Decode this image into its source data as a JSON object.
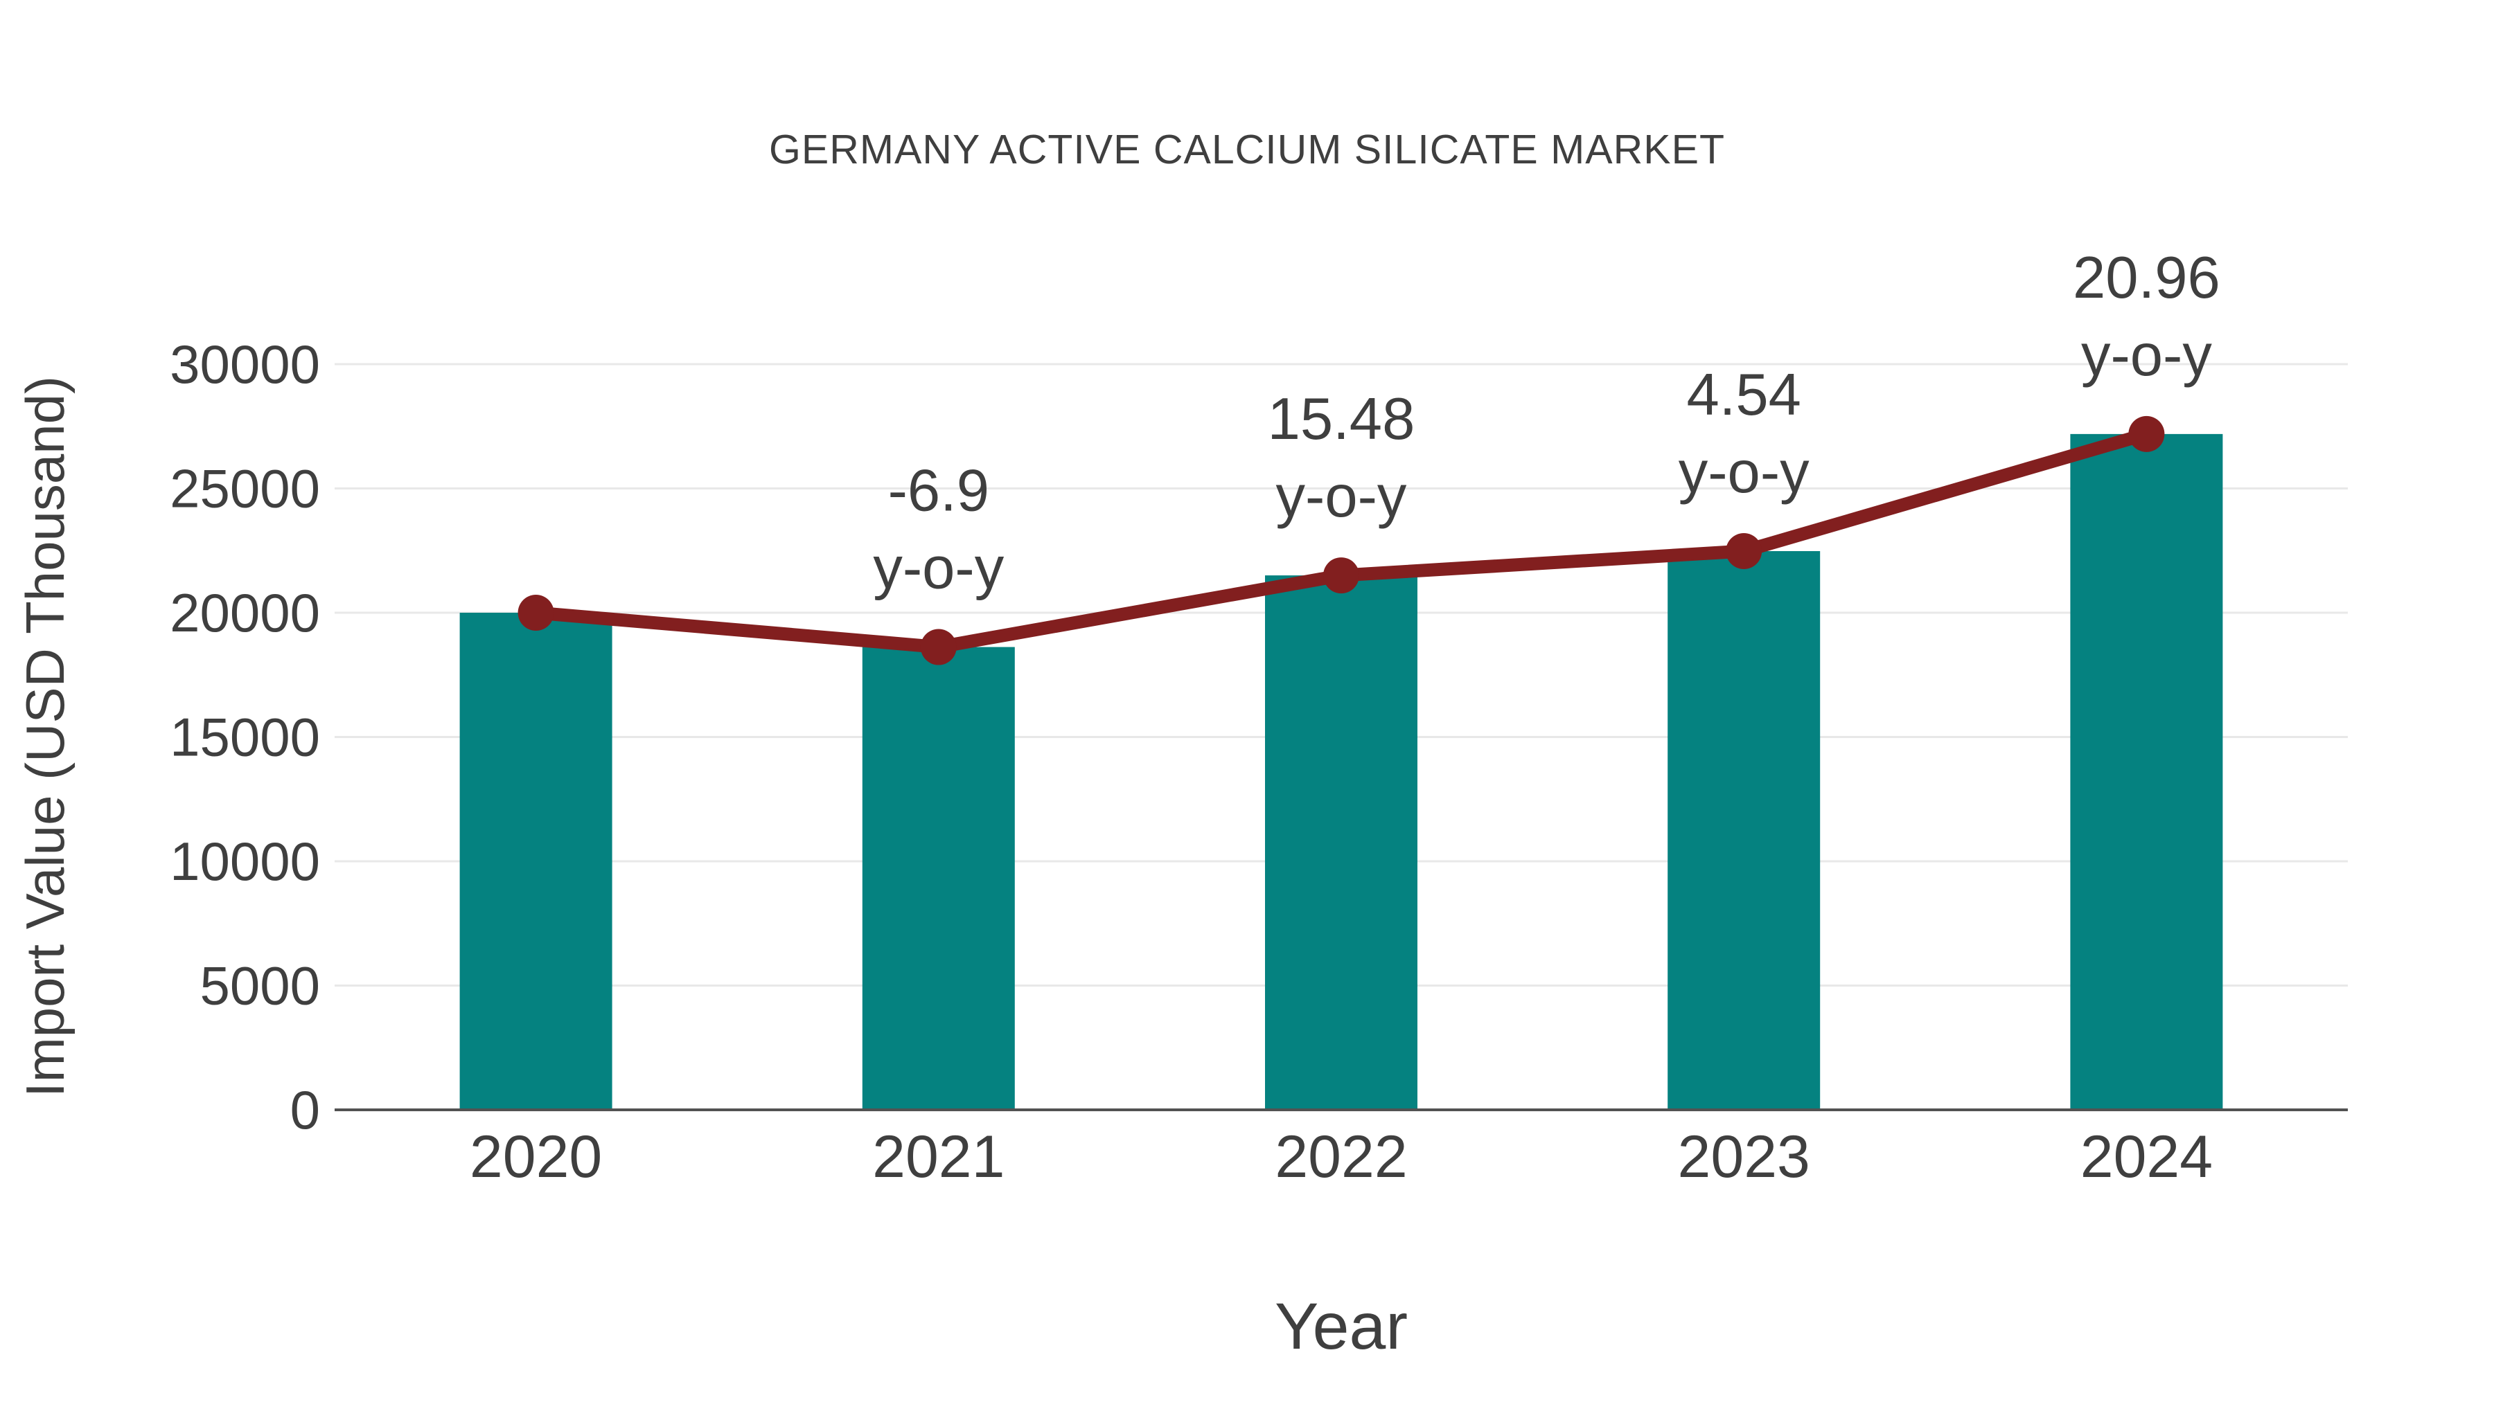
{
  "chart_data": {
    "type": "bar",
    "title": "GERMANY ACTIVE CALCIUM SILICATE MARKET",
    "xlabel": "Year",
    "ylabel": "Import Value (USD Thousand)",
    "categories": [
      "2020",
      "2021",
      "2022",
      "2023",
      "2024"
    ],
    "series": [
      {
        "name": "Import Value (USD Thousand)",
        "type": "bar",
        "values": [
          20000,
          18620,
          21502,
          22479,
          27190
        ]
      },
      {
        "name": "Import Value trend",
        "type": "line",
        "values": [
          20000,
          18620,
          21502,
          22479,
          27190
        ]
      }
    ],
    "annotations": [
      {
        "category": "2021",
        "value": "-6.9",
        "suffix": "y-o-y"
      },
      {
        "category": "2022",
        "value": "15.48",
        "suffix": "y-o-y"
      },
      {
        "category": "2023",
        "value": "4.54",
        "suffix": "y-o-y"
      },
      {
        "category": "2024",
        "value": "20.96",
        "suffix": "y-o-y"
      }
    ],
    "yticks": [
      0,
      5000,
      10000,
      15000,
      20000,
      25000,
      30000
    ],
    "ylim": [
      0,
      30000
    ],
    "grid": true,
    "legend_position": "none",
    "colors": {
      "bar": "#058280",
      "line": "#821f1f",
      "marker": "#821f1f",
      "text": "#3f3f3f",
      "grid": "#e8e8e8",
      "axis": "#525252",
      "background": "#ffffff"
    }
  }
}
